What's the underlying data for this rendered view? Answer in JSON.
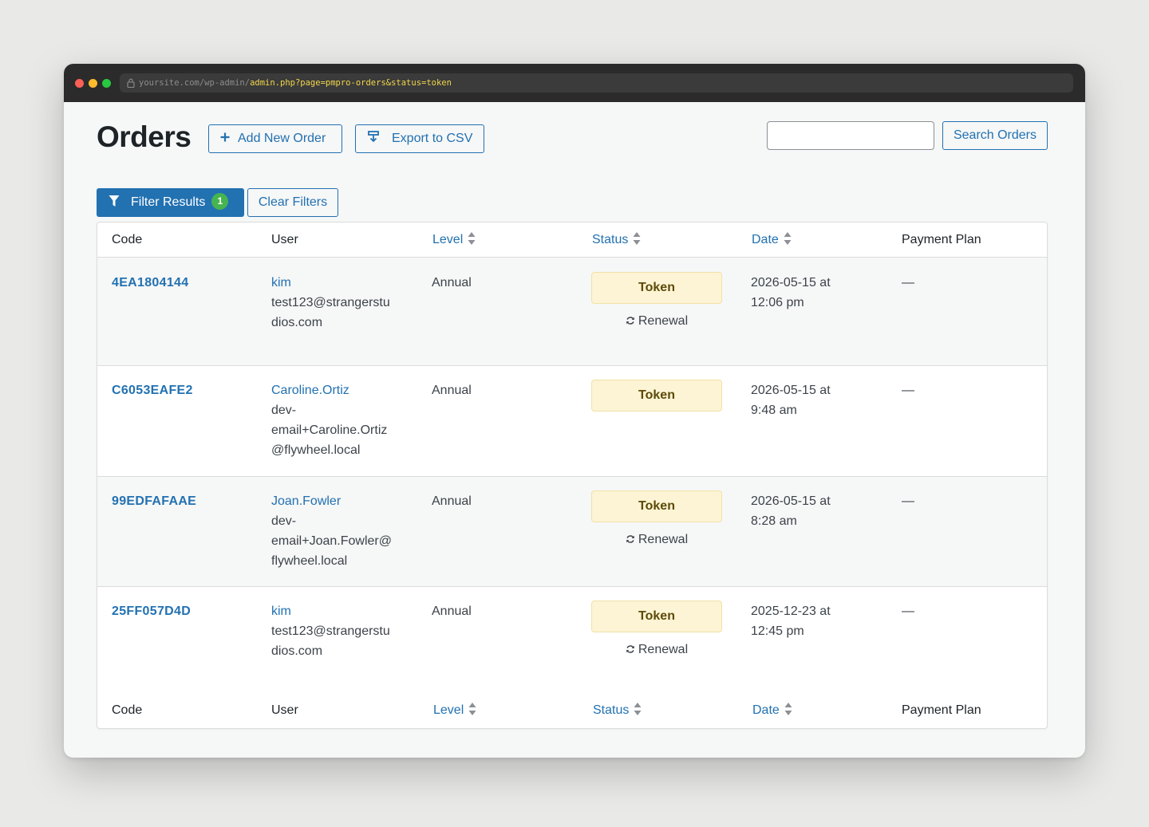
{
  "browser": {
    "url_base": "yoursite.com/wp-admin/",
    "url_path": "admin.php?page=pmpro-orders&status=token"
  },
  "header": {
    "title": "Orders",
    "add_new_label": "Add New Order",
    "export_label": "Export to CSV",
    "search_value": "",
    "search_button_label": "Search Orders"
  },
  "filters": {
    "filter_label": "Filter Results",
    "filter_count": "1",
    "clear_label": "Clear Filters"
  },
  "table": {
    "columns": {
      "code": "Code",
      "user": "User",
      "level": "Level",
      "status": "Status",
      "date": "Date",
      "payment_plan": "Payment Plan"
    },
    "rows": [
      {
        "code": "4EA1804144",
        "username": "kim",
        "email": [
          "test123@strangerstu",
          "dios.com"
        ],
        "level": "Annual",
        "status": "Token",
        "renewal": "Renewal",
        "date": [
          "2026-05-15 at",
          "12:06 pm"
        ],
        "payment_plan": "—"
      },
      {
        "code": "C6053EAFE2",
        "username": "Caroline.Ortiz",
        "email": [
          "dev-",
          "email+Caroline.Ortiz",
          "@flywheel.local"
        ],
        "level": "Annual",
        "status": "Token",
        "renewal": "",
        "date": [
          "2026-05-15 at",
          "9:48 am"
        ],
        "payment_plan": "—"
      },
      {
        "code": "99EDFAFAAE",
        "username": "Joan.Fowler",
        "email": [
          "dev-",
          "email+Joan.Fowler@",
          "flywheel.local"
        ],
        "level": "Annual",
        "status": "Token",
        "renewal": "Renewal",
        "date": [
          "2026-05-15 at",
          "8:28 am"
        ],
        "payment_plan": "—"
      },
      {
        "code": "25FF057D4D",
        "username": "kim",
        "email": [
          "test123@strangerstu",
          "dios.com"
        ],
        "level": "Annual",
        "status": "Token",
        "renewal": "Renewal",
        "date": [
          "2025-12-23 at",
          "12:45 pm"
        ],
        "payment_plan": "—"
      }
    ]
  },
  "colors": {
    "accent": "#2271b1",
    "badge_green": "#46b450",
    "token_badge_bg": "#fcf4d4"
  },
  "icons": {
    "add": "plus-icon",
    "export": "download-icon",
    "filter": "funnel-icon",
    "sort": "sort-arrows-icon",
    "renewal": "refresh-icon",
    "lock": "lock-icon"
  }
}
